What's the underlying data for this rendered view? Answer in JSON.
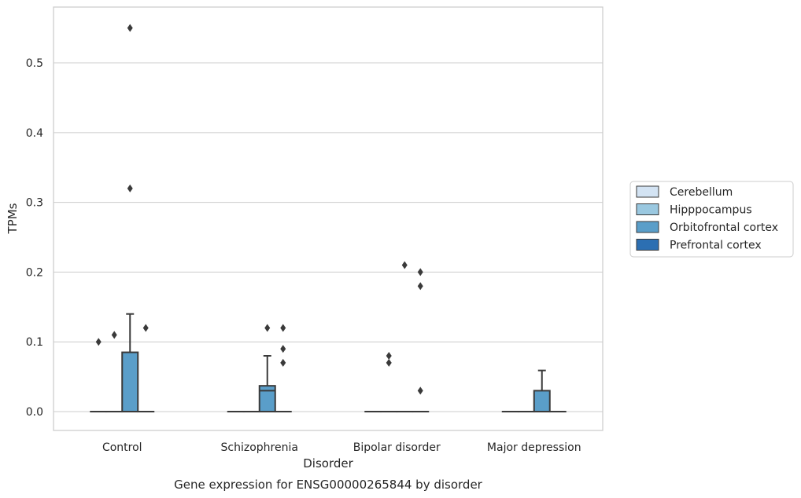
{
  "chart_data": {
    "type": "box",
    "title": "",
    "caption": "Gene expression for ENSG00000265844 by disorder",
    "xlabel": "Disorder",
    "ylabel": "TPMs",
    "ylim": [
      -0.027,
      0.58
    ],
    "yticks": [
      0.0,
      0.1,
      0.2,
      0.3,
      0.4,
      0.5
    ],
    "ytick_labels": [
      "0.0",
      "0.1",
      "0.2",
      "0.3",
      "0.4",
      "0.5"
    ],
    "grid": "horizontal",
    "legend_position": "right",
    "categories": [
      "Control",
      "Schizophrenia",
      "Bipolar disorder",
      "Major depression"
    ],
    "series": [
      {
        "name": "Cerebellum",
        "color": "#d3e3f3",
        "boxes": [
          {
            "q1": 0.0,
            "median": 0.0,
            "q3": 0.0,
            "whisker_low": 0.0,
            "whisker_high": 0.0,
            "outliers": [
              0.1
            ]
          },
          {
            "q1": 0.0,
            "median": 0.0,
            "q3": 0.0,
            "whisker_low": 0.0,
            "whisker_high": 0.0,
            "outliers": []
          },
          {
            "q1": 0.0,
            "median": 0.0,
            "q3": 0.0,
            "whisker_low": 0.0,
            "whisker_high": 0.0,
            "outliers": []
          },
          {
            "q1": 0.0,
            "median": 0.0,
            "q3": 0.0,
            "whisker_low": 0.0,
            "whisker_high": 0.0,
            "outliers": []
          }
        ]
      },
      {
        "name": "Hipppocampus",
        "color": "#9ac8e0",
        "boxes": [
          {
            "q1": 0.0,
            "median": 0.0,
            "q3": 0.0,
            "whisker_low": 0.0,
            "whisker_high": 0.0,
            "outliers": [
              0.11
            ]
          },
          {
            "q1": 0.0,
            "median": 0.0,
            "q3": 0.0,
            "whisker_low": 0.0,
            "whisker_high": 0.0,
            "outliers": []
          },
          {
            "q1": 0.0,
            "median": 0.0,
            "q3": 0.0,
            "whisker_low": 0.0,
            "whisker_high": 0.0,
            "outliers": [
              0.07,
              0.08
            ]
          },
          {
            "q1": 0.0,
            "median": 0.0,
            "q3": 0.0,
            "whisker_low": 0.0,
            "whisker_high": 0.0,
            "outliers": []
          }
        ]
      },
      {
        "name": "Orbitofrontal cortex",
        "color": "#5a9ec9",
        "boxes": [
          {
            "q1": 0.0,
            "median": 0.0,
            "q3": 0.085,
            "whisker_low": 0.0,
            "whisker_high": 0.14,
            "outliers": [
              0.32,
              0.55
            ]
          },
          {
            "q1": 0.0,
            "median": 0.03,
            "q3": 0.037,
            "whisker_low": 0.0,
            "whisker_high": 0.08,
            "outliers": [
              0.12
            ]
          },
          {
            "q1": 0.0,
            "median": 0.0,
            "q3": 0.0,
            "whisker_low": 0.0,
            "whisker_high": 0.0,
            "outliers": [
              0.21
            ]
          },
          {
            "q1": 0.0,
            "median": 0.0,
            "q3": 0.03,
            "whisker_low": 0.0,
            "whisker_high": 0.059,
            "outliers": []
          }
        ]
      },
      {
        "name": "Prefrontal cortex",
        "color": "#2c6fb2",
        "boxes": [
          {
            "q1": 0.0,
            "median": 0.0,
            "q3": 0.0,
            "whisker_low": 0.0,
            "whisker_high": 0.0,
            "outliers": [
              0.12
            ]
          },
          {
            "q1": 0.0,
            "median": 0.0,
            "q3": 0.0,
            "whisker_low": 0.0,
            "whisker_high": 0.0,
            "outliers": [
              0.07,
              0.09,
              0.12
            ]
          },
          {
            "q1": 0.0,
            "median": 0.0,
            "q3": 0.0,
            "whisker_low": 0.0,
            "whisker_high": 0.0,
            "outliers": [
              0.03,
              0.18,
              0.2
            ]
          },
          {
            "q1": 0.0,
            "median": 0.0,
            "q3": 0.0,
            "whisker_low": 0.0,
            "whisker_high": 0.0,
            "outliers": []
          }
        ]
      }
    ]
  }
}
